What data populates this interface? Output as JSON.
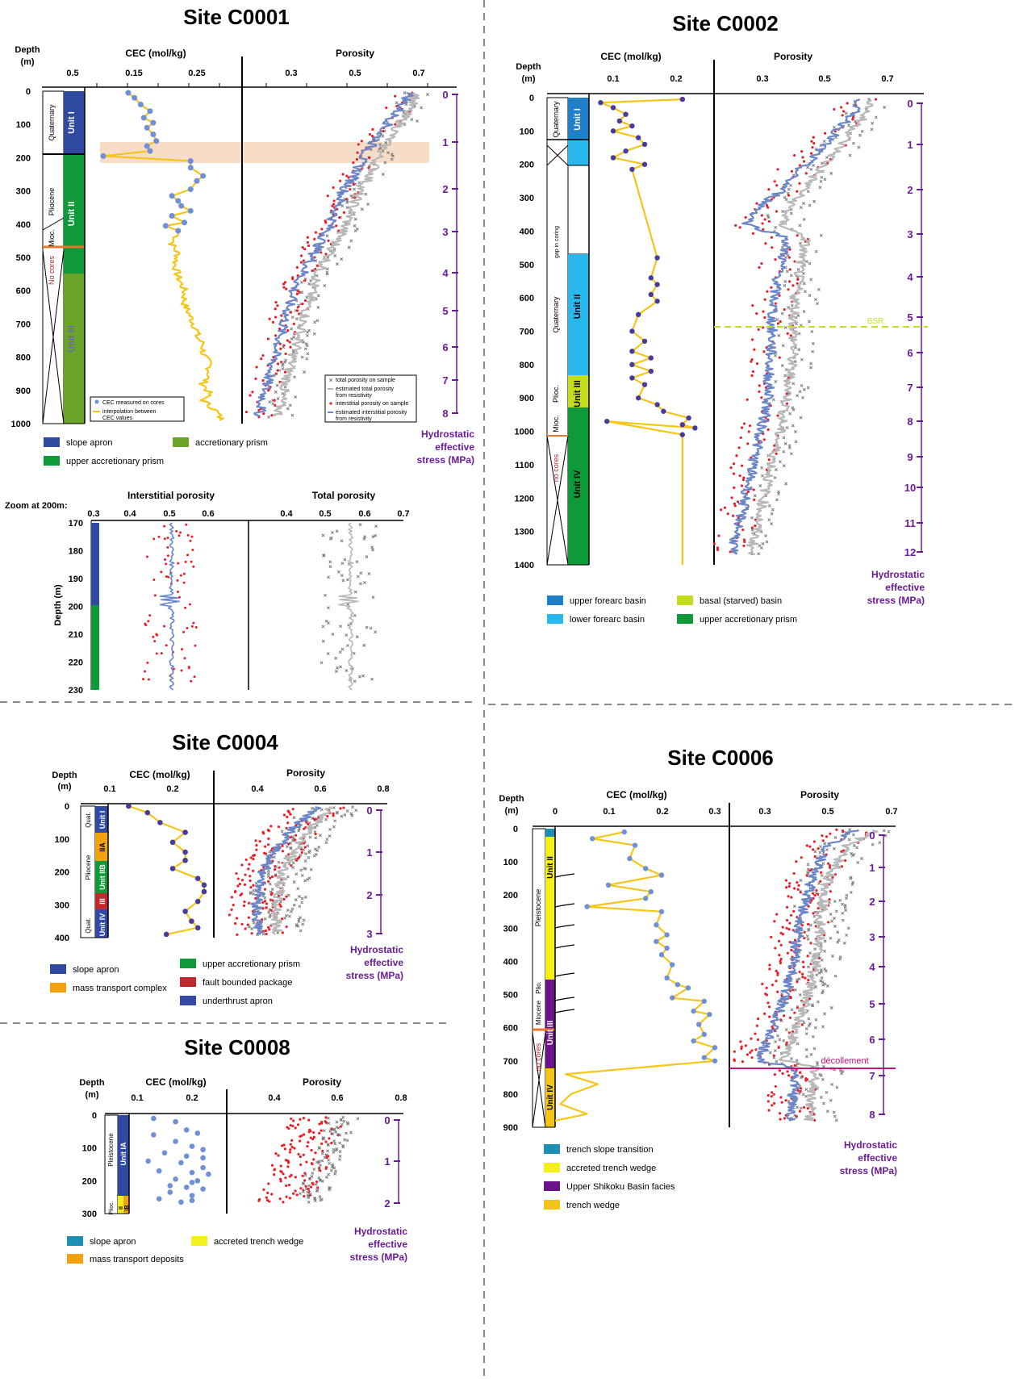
{
  "colors": {
    "cec_line": "#f5c518",
    "cec_point": "#4a3a9a",
    "cec_point_c0008": "#6f8fd6",
    "porosity_blue": "#6b87c9",
    "porosity_grey": "#b8b8b8",
    "sample_red": "#e8202a",
    "sample_grey": "#7a7a7a",
    "stress_purple": "#6a1b9a",
    "slope_apron": "#2f4aa0",
    "upper_accretionary_prism": "#0f9a3a",
    "accretionary_prism": "#6aa52a",
    "upper_forearc_basin": "#1f7fc8",
    "lower_forearc_basin": "#29b8ee",
    "basal_starved_basin": "#c4dd1e",
    "mass_transport": "#f2a20e",
    "fault_bounded": "#c1272d",
    "underthrust_apron": "#3349a8",
    "trench_slope_transition": "#1d8fb5",
    "accreted_trench_wedge": "#f3f01c",
    "upper_shikoku": "#6a148a",
    "trench_wedge": "#f2c418",
    "highlight_band": "#f7dcc8",
    "bsr": "#c5dc2a",
    "decollement": "#c0147a"
  },
  "common": {
    "depth_label": "Depth",
    "depth_unit": "(m)",
    "cec_title": "CEC (mol/kg)",
    "porosity_title": "Porosity",
    "stress_title_lines": [
      "Hydrostatic",
      "effective",
      "stress (MPa)"
    ],
    "no_cores": "No cores",
    "no_cores_lower": "no cores"
  },
  "sites": {
    "c0001": {
      "title": "Site C0001",
      "depth_ticks": [
        "0",
        "100",
        "200",
        "300",
        "400",
        "500",
        "600",
        "700",
        "800",
        "900",
        "1000"
      ],
      "cec_ticks": [
        "0.5",
        "0.15",
        "0.25"
      ],
      "porosity_ticks": [
        "0.3",
        "0.5",
        "0.7"
      ],
      "stress_ticks": [
        "0",
        "1",
        "2",
        "3",
        "4",
        "5",
        "6",
        "7",
        "8"
      ],
      "units": [
        "Unit I",
        "Unit II",
        "Unit III"
      ],
      "ages": [
        "Quaternary",
        "Pliocène",
        "Mioc."
      ],
      "legend_cec": [
        "CEC measured on cores",
        "interpolation between",
        "CEC values"
      ],
      "legend_porosity": [
        "total porosity on sample",
        "estimated total porosity",
        "from resistivity",
        "interstitial porosity on sample",
        "estimated interstitial porosity",
        "from resistivity"
      ],
      "facies_legend": [
        "slope apron",
        "accretionary prism",
        "upper accretionary prism"
      ]
    },
    "c0001_zoom": {
      "label": "Zoom at 200m:",
      "interstitial_title": "Interstitial porosity",
      "total_title": "Total porosity",
      "depth_axis_label": "Depth (m)",
      "interstitial_ticks": [
        "0.3",
        "0.4",
        "0.5",
        "0.6"
      ],
      "total_ticks": [
        "0.4",
        "0.5",
        "0.6",
        "0.7"
      ],
      "depth_ticks": [
        "170",
        "180",
        "190",
        "200",
        "210",
        "220",
        "230"
      ]
    },
    "c0002": {
      "title": "Site C0002",
      "depth_ticks": [
        "0",
        "100",
        "200",
        "300",
        "400",
        "500",
        "600",
        "700",
        "800",
        "900",
        "1000",
        "1100",
        "1200",
        "1300",
        "1400"
      ],
      "cec_ticks": [
        "0.1",
        "0.2"
      ],
      "porosity_ticks": [
        "0.3",
        "0.5",
        "0.7"
      ],
      "stress_ticks": [
        "0",
        "1",
        "2",
        "3",
        "4",
        "5",
        "6",
        "7",
        "8",
        "9",
        "10",
        "11",
        "12"
      ],
      "units": [
        "Unit I",
        "Unit II",
        "Unit III",
        "Unit IV"
      ],
      "ages": [
        "Quaternary",
        "Quaternary",
        "Plioc.",
        "Mioc."
      ],
      "gap_label": "gap in coring",
      "bsr_label": "BSR",
      "facies_legend": [
        "upper forearc basin",
        "basal (starved) basin",
        "lower forearc basin",
        "upper accretionary prism"
      ]
    },
    "c0004": {
      "title": "Site C0004",
      "depth_ticks": [
        "0",
        "100",
        "200",
        "300",
        "400"
      ],
      "cec_ticks": [
        "0.1",
        "0.2"
      ],
      "porosity_ticks": [
        "0.4",
        "0.6",
        "0.8"
      ],
      "stress_ticks": [
        "0",
        "1",
        "2",
        "3"
      ],
      "units": [
        "Unit I",
        "IIA",
        "Unit IIB",
        "III",
        "Unit IV"
      ],
      "ages": [
        "Quat.",
        "Pliocene",
        "Quat."
      ],
      "facies_legend": [
        "slope apron",
        "upper accretionary prism",
        "mass transport complex",
        "fault bounded package",
        "underthrust apron"
      ]
    },
    "c0008": {
      "title": "Site C0008",
      "depth_ticks": [
        "0",
        "100",
        "200",
        "300"
      ],
      "cec_ticks": [
        "0.1",
        "0.2"
      ],
      "porosity_ticks": [
        "0.4",
        "0.6",
        "0.8"
      ],
      "stress_ticks": [
        "0",
        "1",
        "2"
      ],
      "units": [
        "Unit IA",
        "II",
        "IB"
      ],
      "ages": [
        "Pleistocene",
        "Plioc."
      ],
      "facies_legend": [
        "slope apron",
        "accreted trench wedge",
        "mass transport deposits"
      ]
    },
    "c0006": {
      "title": "Site C0006",
      "depth_ticks": [
        "0",
        "100",
        "200",
        "300",
        "400",
        "500",
        "600",
        "700",
        "800",
        "900"
      ],
      "cec_ticks": [
        "0",
        "0.1",
        "0.2",
        "0.3"
      ],
      "porosity_ticks": [
        "0.3",
        "0.5",
        "0.7"
      ],
      "stress_ticks": [
        "0",
        "1",
        "2",
        "3",
        "4",
        "5",
        "6",
        "7",
        "8"
      ],
      "units": [
        "Unit II",
        "Unit III",
        "Unit IV"
      ],
      "ages": [
        "Pleistocene",
        "Plio.",
        "Miocene"
      ],
      "decollement_label": "décollement",
      "facies_legend": [
        "trench slope transition",
        "accreted trench wedge",
        "Upper Shikoku Basin facies",
        "trench wedge"
      ]
    }
  },
  "chart_data": [
    {
      "type": "line",
      "site": "C0001",
      "xlabel": "CEC (mol/kg)",
      "ylabel": "Depth (m)",
      "ylim": [
        0,
        1000
      ],
      "series": [
        {
          "name": "CEC measured on cores",
          "x": [
            0.14,
            0.15,
            0.16,
            0.175,
            0.165,
            0.18,
            0.17,
            0.18,
            0.185,
            0.17,
            0.175,
            0.1,
            0.24,
            0.24,
            0.26,
            0.25,
            0.24,
            0.21,
            0.22,
            0.225,
            0.24,
            0.21,
            0.23,
            0.2,
            0.22
          ],
          "y": [
            5,
            20,
            40,
            60,
            80,
            95,
            110,
            130,
            150,
            165,
            180,
            195,
            210,
            230,
            255,
            270,
            295,
            315,
            330,
            345,
            360,
            375,
            395,
            405,
            420
          ]
        },
        {
          "name": "interpolation between CEC values",
          "x": [
            0.22,
            0.21,
            0.22,
            0.215,
            0.22,
            0.23,
            0.23,
            0.24,
            0.25,
            0.25,
            0.26,
            0.26,
            0.27,
            0.27,
            0.26,
            0.27,
            0.26,
            0.28,
            0.29
          ],
          "y": [
            430,
            460,
            490,
            520,
            560,
            600,
            640,
            680,
            720,
            740,
            760,
            790,
            820,
            850,
            880,
            910,
            930,
            960,
            990
          ]
        }
      ]
    },
    {
      "type": "line",
      "site": "C0001",
      "xlabel": "Porosity",
      "ylabel": "Depth (m)",
      "ylim": [
        0,
        1000
      ],
      "xlim": [
        0.15,
        0.7
      ],
      "series": [
        {
          "name": "estimated interstitial porosity from resistivity",
          "x": [
            0.68,
            0.64,
            0.6,
            0.56,
            0.52,
            0.5,
            0.46,
            0.44,
            0.42,
            0.39,
            0.36,
            0.33,
            0.3,
            0.27,
            0.24,
            0.21,
            0.19
          ],
          "y": [
            0,
            50,
            100,
            150,
            200,
            250,
            300,
            350,
            400,
            450,
            500,
            550,
            600,
            700,
            800,
            900,
            980
          ]
        },
        {
          "name": "estimated total porosity from resistivity",
          "x": [
            0.7,
            0.67,
            0.64,
            0.6,
            0.57,
            0.55,
            0.51,
            0.49,
            0.47,
            0.44,
            0.41,
            0.38,
            0.36,
            0.33,
            0.3,
            0.27,
            0.25
          ],
          "y": [
            0,
            50,
            100,
            150,
            200,
            250,
            300,
            350,
            400,
            450,
            500,
            550,
            600,
            700,
            800,
            900,
            980
          ]
        }
      ]
    },
    {
      "type": "line",
      "site": "C0002",
      "xlabel": "CEC (mol/kg)",
      "ylabel": "Depth (m)",
      "ylim": [
        0,
        1400
      ],
      "series": [
        {
          "name": "CEC measured on cores",
          "x": [
            0.21,
            0.08,
            0.1,
            0.12,
            0.11,
            0.13,
            0.1,
            0.14,
            0.15,
            0.12,
            0.1,
            0.15,
            0.13,
            0.17,
            0.16,
            0.17,
            0.16,
            0.17,
            0.14,
            0.13,
            0.15,
            0.13,
            0.16,
            0.13,
            0.16,
            0.13,
            0.15,
            0.14,
            0.17,
            0.18,
            0.22,
            0.21,
            0.23,
            0.09,
            0.21,
            0.21
          ],
          "y": [
            5,
            15,
            30,
            50,
            70,
            85,
            100,
            120,
            140,
            160,
            180,
            200,
            215,
            480,
            540,
            560,
            590,
            610,
            650,
            700,
            730,
            760,
            780,
            800,
            820,
            840,
            860,
            900,
            920,
            940,
            960,
            980,
            990,
            970,
            1010,
            1400
          ]
        }
      ]
    },
    {
      "type": "line",
      "site": "C0002",
      "xlabel": "Porosity",
      "ylabel": "Depth (m)",
      "ylim": [
        0,
        1400
      ],
      "series": [
        {
          "name": "estimated interstitial porosity from resistivity",
          "x": [
            0.62,
            0.58,
            0.52,
            0.46,
            0.4,
            0.36,
            0.3,
            0.25,
            0.38,
            0.36,
            0.34,
            0.33,
            0.33,
            0.32,
            0.32,
            0.3,
            0.28,
            0.26,
            0.24,
            0.22,
            0.2
          ],
          "y": [
            0,
            60,
            120,
            180,
            230,
            280,
            320,
            380,
            420,
            500,
            580,
            660,
            740,
            820,
            900,
            980,
            1060,
            1140,
            1220,
            1300,
            1370
          ]
        },
        {
          "name": "estimated total porosity from resistivity",
          "x": [
            0.66,
            0.62,
            0.57,
            0.52,
            0.47,
            0.43,
            0.39,
            0.36,
            0.44,
            0.42,
            0.41,
            0.4,
            0.4,
            0.39,
            0.38,
            0.36,
            0.34,
            0.32,
            0.3,
            0.28,
            0.26
          ],
          "y": [
            0,
            60,
            120,
            180,
            230,
            280,
            320,
            380,
            420,
            500,
            580,
            660,
            740,
            820,
            900,
            980,
            1060,
            1140,
            1220,
            1300,
            1370
          ]
        }
      ]
    },
    {
      "type": "line",
      "site": "C0004",
      "xlabel": "CEC (mol/kg)",
      "ylabel": "Depth (m)",
      "ylim": [
        0,
        400
      ],
      "series": [
        {
          "name": "CEC measured on cores",
          "x": [
            0.13,
            0.16,
            0.18,
            0.22,
            0.2,
            0.22,
            0.22,
            0.2,
            0.24,
            0.25,
            0.25,
            0.24,
            0.22,
            0.23,
            0.24,
            0.19
          ],
          "y": [
            0,
            20,
            50,
            80,
            110,
            140,
            165,
            190,
            220,
            240,
            260,
            290,
            320,
            350,
            370,
            390
          ]
        }
      ]
    },
    {
      "type": "line",
      "site": "C0004",
      "xlabel": "Porosity",
      "ylabel": "Depth (m)",
      "ylim": [
        0,
        400
      ],
      "xlim": [
        0.2,
        0.8
      ],
      "series": [
        {
          "name": "estimated interstitial porosity from resistivity",
          "x": [
            0.6,
            0.55,
            0.5,
            0.47,
            0.44,
            0.42,
            0.41,
            0.4,
            0.4,
            0.41
          ],
          "y": [
            0,
            40,
            80,
            120,
            160,
            200,
            250,
            300,
            350,
            390
          ]
        },
        {
          "name": "estimated total porosity from resistivity",
          "x": [
            0.64,
            0.6,
            0.56,
            0.53,
            0.5,
            0.48,
            0.47,
            0.46,
            0.46,
            0.46
          ],
          "y": [
            0,
            40,
            80,
            120,
            160,
            200,
            250,
            300,
            350,
            390
          ]
        }
      ]
    },
    {
      "type": "scatter",
      "site": "C0008",
      "xlabel": "CEC (mol/kg)",
      "ylabel": "Depth (m)",
      "ylim": [
        0,
        300
      ],
      "series": [
        {
          "name": "CEC measured on cores",
          "x": [
            0.13,
            0.17,
            0.19,
            0.21,
            0.13,
            0.17,
            0.2,
            0.22,
            0.15,
            0.19,
            0.22,
            0.12,
            0.18,
            0.22,
            0.14,
            0.2,
            0.23,
            0.17,
            0.21,
            0.2,
            0.16,
            0.19,
            0.22,
            0.16,
            0.2,
            0.14,
            0.2,
            0.18
          ],
          "y": [
            10,
            20,
            45,
            55,
            60,
            80,
            95,
            105,
            115,
            125,
            130,
            140,
            145,
            160,
            170,
            175,
            180,
            195,
            200,
            205,
            215,
            220,
            225,
            235,
            245,
            255,
            260,
            265
          ]
        }
      ]
    },
    {
      "type": "line",
      "site": "C0006",
      "xlabel": "CEC (mol/kg)",
      "ylabel": "Depth (m)",
      "ylim": [
        0,
        900
      ],
      "series": [
        {
          "name": "CEC measured on cores",
          "x": [
            0.13,
            0.07,
            0.15,
            0.14,
            0.17,
            0.2,
            0.1,
            0.18,
            0.17,
            0.06,
            0.2,
            0.19,
            0.21,
            0.19,
            0.21,
            0.2,
            0.22,
            0.21,
            0.23,
            0.25,
            0.22,
            0.28,
            0.26,
            0.29,
            0.27,
            0.28,
            0.26,
            0.3,
            0.28,
            0.3,
            0.16,
            0.02,
            0.08,
            0.03,
            0.01,
            0.06,
            0.0
          ],
          "y": [
            10,
            30,
            50,
            90,
            120,
            140,
            170,
            190,
            210,
            235,
            250,
            290,
            320,
            340,
            360,
            380,
            410,
            450,
            470,
            480,
            510,
            520,
            550,
            560,
            590,
            620,
            640,
            660,
            690,
            700,
            720,
            740,
            770,
            800,
            830,
            860,
            880
          ]
        }
      ]
    }
  ]
}
